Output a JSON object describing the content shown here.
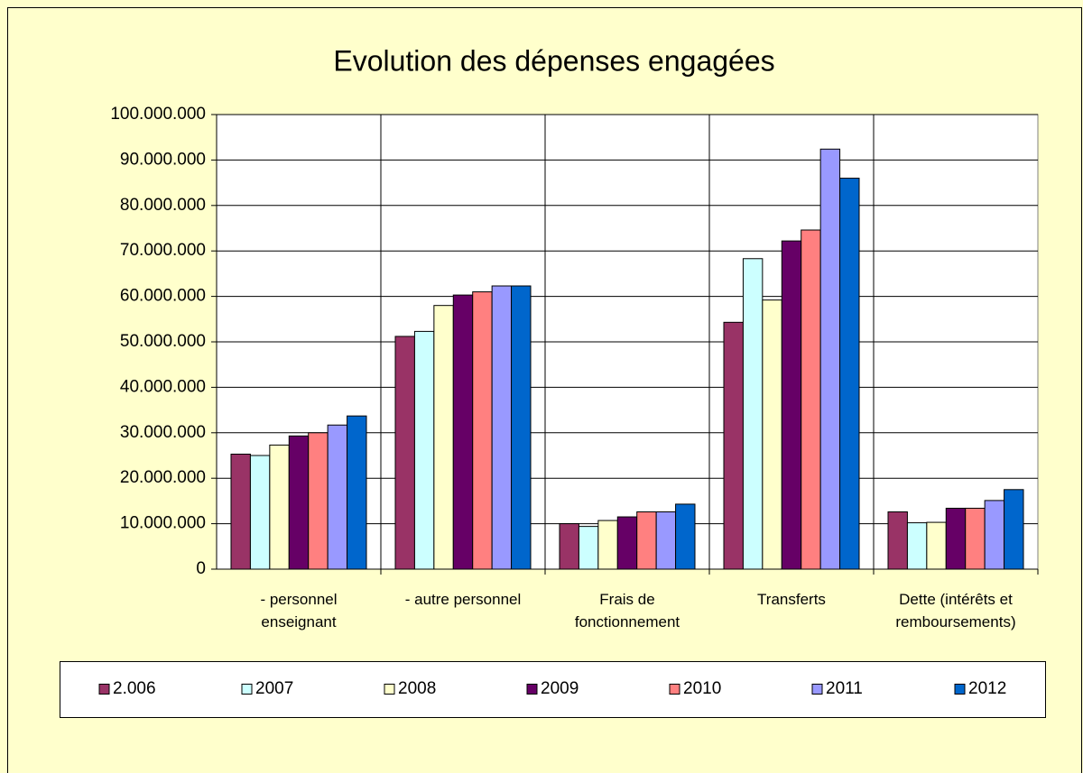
{
  "chart_data": {
    "type": "bar",
    "title": "Evolution des dépenses engagées",
    "categories": [
      "- personnel enseignant",
      "- autre personnel",
      "Frais de fonctionnement",
      "Transferts",
      "Dette (intérêts et remboursements)"
    ],
    "series": [
      {
        "name": "2.006",
        "color": "#993366",
        "values": [
          25300000,
          51200000,
          10000000,
          54300000,
          12600000
        ]
      },
      {
        "name": "2007",
        "color": "#ccffff",
        "values": [
          25000000,
          52300000,
          9400000,
          68300000,
          10200000
        ]
      },
      {
        "name": "2008",
        "color": "#ffffcc",
        "values": [
          27300000,
          58000000,
          10700000,
          59200000,
          10300000
        ]
      },
      {
        "name": "2009",
        "color": "#660066",
        "values": [
          29300000,
          60300000,
          11500000,
          72200000,
          13400000
        ]
      },
      {
        "name": "2010",
        "color": "#ff8080",
        "values": [
          30000000,
          61000000,
          12600000,
          74600000,
          13400000
        ]
      },
      {
        "name": "2011",
        "color": "#9999ff",
        "values": [
          31700000,
          62300000,
          12600000,
          92400000,
          15100000
        ]
      },
      {
        "name": "2012",
        "color": "#0066cc",
        "values": [
          33700000,
          62300000,
          14300000,
          86000000,
          17500000
        ]
      }
    ],
    "ylim": [
      0,
      100000000
    ],
    "yticks": [
      0,
      {
        "value": 10000000,
        "label": "10.000.000"
      },
      {
        "value": 20000000,
        "label": "20.000.000"
      },
      {
        "value": 30000000,
        "label": "30.000.000"
      },
      {
        "value": 40000000,
        "label": "40.000.000"
      },
      {
        "value": 50000000,
        "label": "50.000.000"
      },
      {
        "value": 60000000,
        "label": "60.000.000"
      },
      {
        "value": 70000000,
        "label": "70.000.000"
      },
      {
        "value": 80000000,
        "label": "80.000.000"
      },
      {
        "value": 90000000,
        "label": "90.000.000"
      },
      {
        "value": 100000000,
        "label": "100.000.000"
      }
    ],
    "grid": true,
    "legend": "bottom"
  }
}
